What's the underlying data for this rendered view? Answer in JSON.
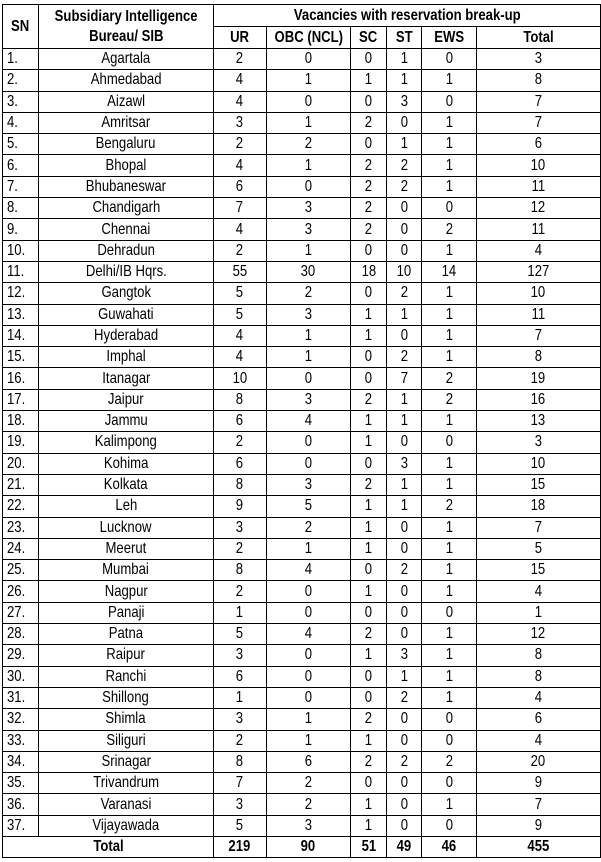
{
  "header": {
    "sn": "SN",
    "sib": "Subsidiary Intelligence Bureau/ SIB",
    "sib_line1": "Subsidiary Intelligence",
    "sib_line2": "Bureau/ SIB",
    "group": "Vacancies with reservation break-up",
    "columns": [
      "UR",
      "OBC (NCL)",
      "SC",
      "ST",
      "EWS",
      "Total"
    ]
  },
  "rows": [
    [
      "1.",
      "Agartala",
      "2",
      "0",
      "0",
      "1",
      "0",
      "3"
    ],
    [
      "2.",
      "Ahmedabad",
      "4",
      "1",
      "1",
      "1",
      "1",
      "8"
    ],
    [
      "3.",
      "Aizawl",
      "4",
      "0",
      "0",
      "3",
      "0",
      "7"
    ],
    [
      "4.",
      "Amritsar",
      "3",
      "1",
      "2",
      "0",
      "1",
      "7"
    ],
    [
      "5.",
      "Bengaluru",
      "2",
      "2",
      "0",
      "1",
      "1",
      "6"
    ],
    [
      "6.",
      "Bhopal",
      "4",
      "1",
      "2",
      "2",
      "1",
      "10"
    ],
    [
      "7.",
      "Bhubaneswar",
      "6",
      "0",
      "2",
      "2",
      "1",
      "11"
    ],
    [
      "8.",
      "Chandigarh",
      "7",
      "3",
      "2",
      "0",
      "0",
      "12"
    ],
    [
      "9.",
      "Chennai",
      "4",
      "3",
      "2",
      "0",
      "2",
      "11"
    ],
    [
      "10.",
      "Dehradun",
      "2",
      "1",
      "0",
      "0",
      "1",
      "4"
    ],
    [
      "11.",
      "Delhi/IB Hqrs.",
      "55",
      "30",
      "18",
      "10",
      "14",
      "127"
    ],
    [
      "12.",
      "Gangtok",
      "5",
      "2",
      "0",
      "2",
      "1",
      "10"
    ],
    [
      "13.",
      "Guwahati",
      "5",
      "3",
      "1",
      "1",
      "1",
      "11"
    ],
    [
      "14.",
      "Hyderabad",
      "4",
      "1",
      "1",
      "0",
      "1",
      "7"
    ],
    [
      "15.",
      "Imphal",
      "4",
      "1",
      "0",
      "2",
      "1",
      "8"
    ],
    [
      "16.",
      "Itanagar",
      "10",
      "0",
      "0",
      "7",
      "2",
      "19"
    ],
    [
      "17.",
      "Jaipur",
      "8",
      "3",
      "2",
      "1",
      "2",
      "16"
    ],
    [
      "18.",
      "Jammu",
      "6",
      "4",
      "1",
      "1",
      "1",
      "13"
    ],
    [
      "19.",
      "Kalimpong",
      "2",
      "0",
      "1",
      "0",
      "0",
      "3"
    ],
    [
      "20.",
      "Kohima",
      "6",
      "0",
      "0",
      "3",
      "1",
      "10"
    ],
    [
      "21.",
      "Kolkata",
      "8",
      "3",
      "2",
      "1",
      "1",
      "15"
    ],
    [
      "22.",
      "Leh",
      "9",
      "5",
      "1",
      "1",
      "2",
      "18"
    ],
    [
      "23.",
      "Lucknow",
      "3",
      "2",
      "1",
      "0",
      "1",
      "7"
    ],
    [
      "24.",
      "Meerut",
      "2",
      "1",
      "1",
      "0",
      "1",
      "5"
    ],
    [
      "25.",
      "Mumbai",
      "8",
      "4",
      "0",
      "2",
      "1",
      "15"
    ],
    [
      "26.",
      "Nagpur",
      "2",
      "0",
      "1",
      "0",
      "1",
      "4"
    ],
    [
      "27.",
      "Panaji",
      "1",
      "0",
      "0",
      "0",
      "0",
      "1"
    ],
    [
      "28.",
      "Patna",
      "5",
      "4",
      "2",
      "0",
      "1",
      "12"
    ],
    [
      "29.",
      "Raipur",
      "3",
      "0",
      "1",
      "3",
      "1",
      "8"
    ],
    [
      "30.",
      "Ranchi",
      "6",
      "0",
      "0",
      "1",
      "1",
      "8"
    ],
    [
      "31.",
      "Shillong",
      "1",
      "0",
      "0",
      "2",
      "1",
      "4"
    ],
    [
      "32.",
      "Shimla",
      "3",
      "1",
      "2",
      "0",
      "0",
      "6"
    ],
    [
      "33.",
      "Siliguri",
      "2",
      "1",
      "1",
      "0",
      "0",
      "4"
    ],
    [
      "34.",
      "Srinagar",
      "8",
      "6",
      "2",
      "2",
      "2",
      "20"
    ],
    [
      "35.",
      "Trivandrum",
      "7",
      "2",
      "0",
      "0",
      "0",
      "9"
    ],
    [
      "36.",
      "Varanasi",
      "3",
      "2",
      "1",
      "0",
      "1",
      "7"
    ],
    [
      "37.",
      "Vijayawada",
      "5",
      "3",
      "1",
      "0",
      "0",
      "9"
    ]
  ],
  "total": {
    "label": "Total",
    "values": [
      "219",
      "90",
      "51",
      "49",
      "46",
      "455"
    ]
  }
}
